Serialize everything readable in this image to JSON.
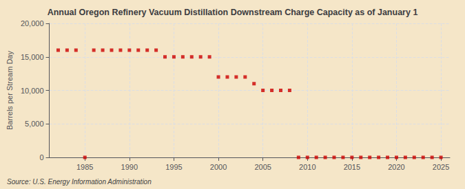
{
  "chart_data": {
    "type": "scatter",
    "title": "Annual Oregon Refinery Vacuum Distillation Downstream Charge Capacity as of January 1",
    "ylabel": "Barrels per Stream Day",
    "source": "Source: U.S. Energy Information Administration",
    "x": [
      1982,
      1983,
      1984,
      1985,
      1986,
      1987,
      1988,
      1989,
      1990,
      1991,
      1992,
      1993,
      1994,
      1995,
      1996,
      1997,
      1998,
      1999,
      2000,
      2001,
      2002,
      2003,
      2004,
      2005,
      2006,
      2007,
      2008,
      2009,
      2010,
      2011,
      2012,
      2013,
      2014,
      2015,
      2016,
      2017,
      2018,
      2019,
      2020,
      2021,
      2022,
      2023,
      2024,
      2025
    ],
    "values": [
      16000,
      16000,
      16000,
      0,
      16000,
      16000,
      16000,
      16000,
      16000,
      16000,
      16000,
      16000,
      15000,
      15000,
      15000,
      15000,
      15000,
      15000,
      12000,
      12000,
      12000,
      12000,
      11000,
      10000,
      10000,
      10000,
      10000,
      0,
      0,
      0,
      0,
      0,
      0,
      0,
      0,
      0,
      0,
      0,
      0,
      0,
      0,
      0,
      0,
      0
    ],
    "color": "#cc0000",
    "marker": "square",
    "xlim": [
      1981,
      2026
    ],
    "xticks": [
      1985,
      1990,
      1995,
      2000,
      2005,
      2010,
      2015,
      2020,
      2025
    ],
    "ylim": [
      0,
      20000
    ],
    "yticks": [
      0,
      {
        "value": 5000,
        "label": "5,000"
      },
      {
        "value": 10000,
        "label": "10,000"
      },
      {
        "value": 15000,
        "label": "15,000"
      },
      {
        "value": 20000,
        "label": "20,000"
      }
    ],
    "grid": true
  }
}
